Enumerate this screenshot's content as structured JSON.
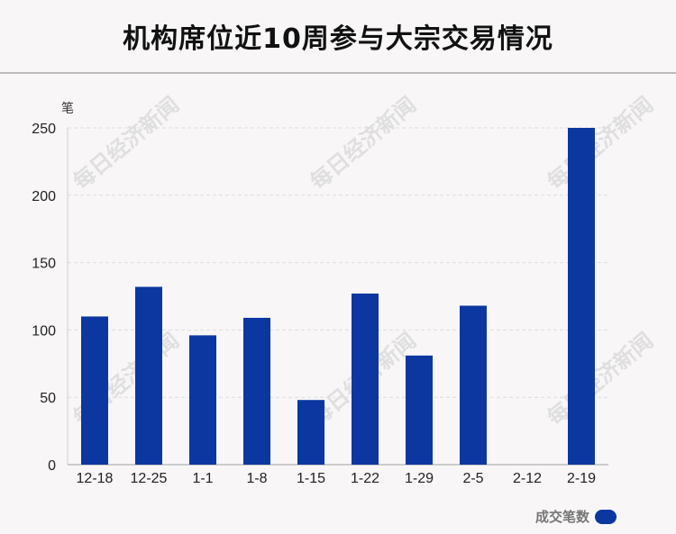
{
  "chart_data": {
    "type": "bar",
    "title": "机构席位近10周参与大宗交易情况",
    "ylabel": "笔",
    "categories": [
      "12-18",
      "12-25",
      "1-1",
      "1-8",
      "1-15",
      "1-22",
      "1-29",
      "2-5",
      "2-12",
      "2-19"
    ],
    "series": [
      {
        "name": "成交笔数",
        "values": [
          110,
          132,
          96,
          109,
          48,
          127,
          81,
          118,
          0,
          250
        ]
      }
    ],
    "ylim": [
      0,
      250
    ],
    "yticks": [
      0,
      50,
      100,
      150,
      200,
      250
    ],
    "grid": true,
    "legend": "bottom-right"
  },
  "colors": {
    "bar": "#0c37a0"
  },
  "watermark": "每日经济新闻"
}
